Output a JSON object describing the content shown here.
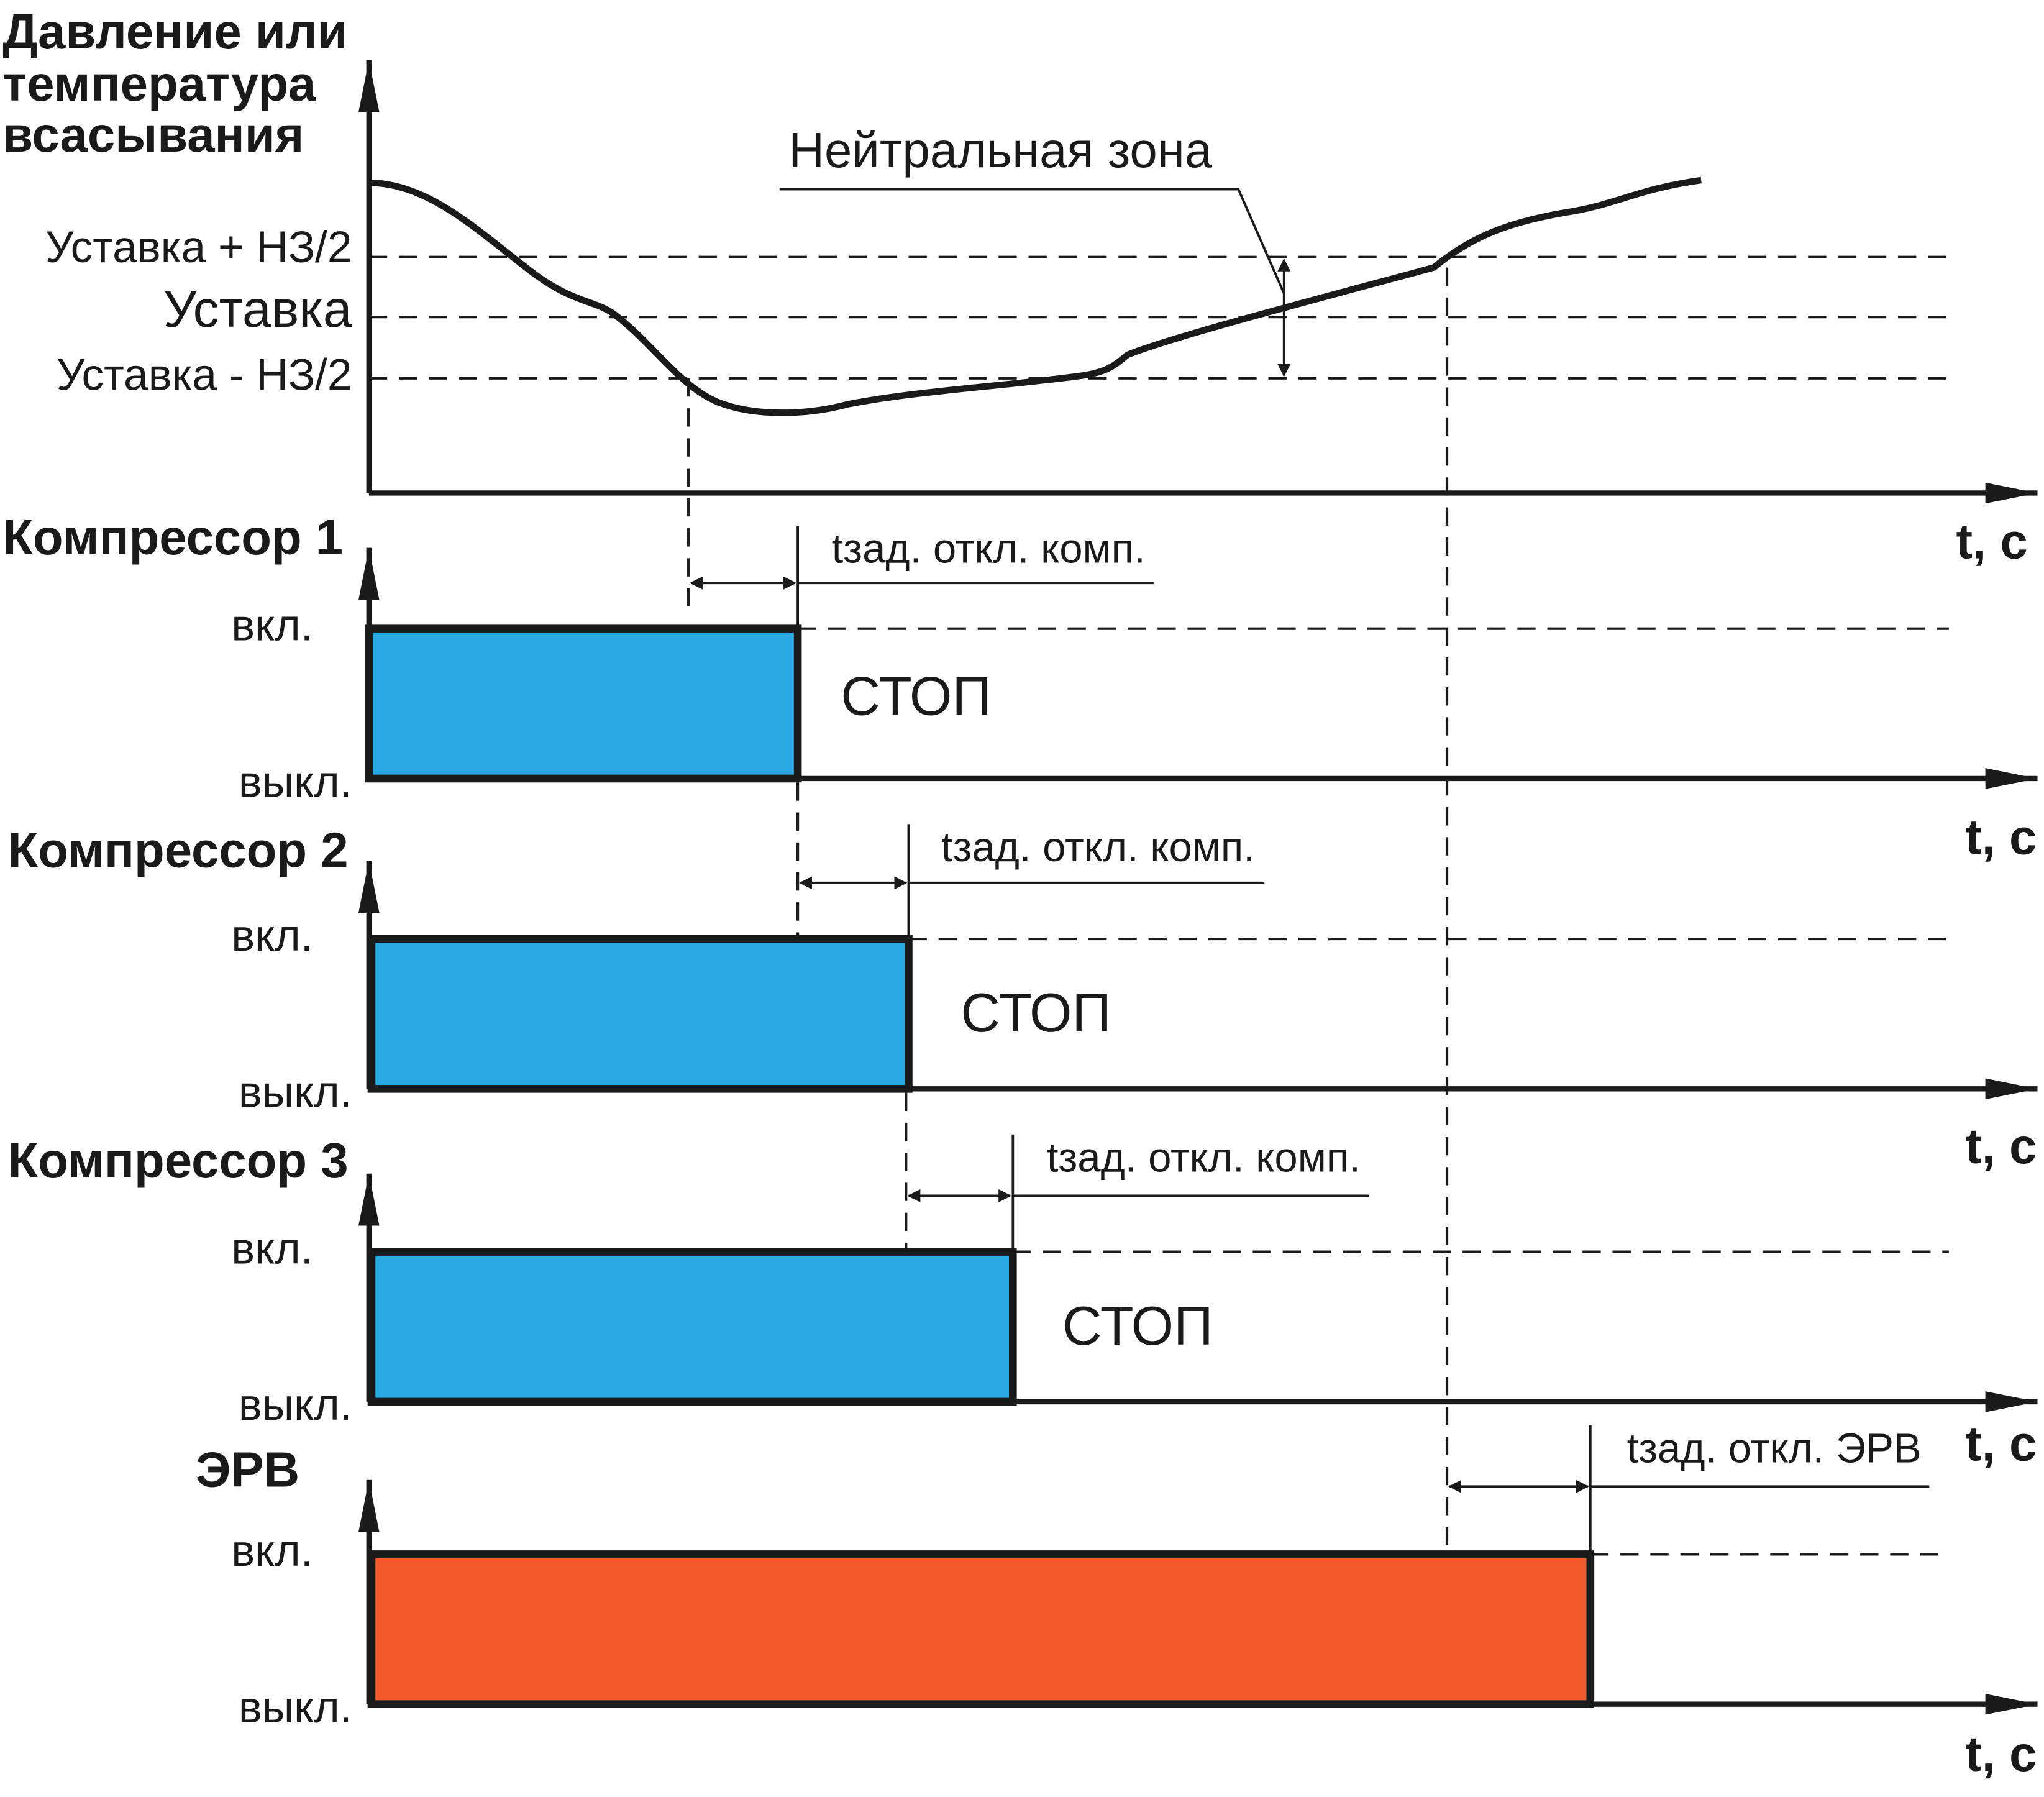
{
  "top_chart": {
    "y_label": [
      "Давление или",
      "температура",
      "всасывания"
    ],
    "levels": [
      "Уставка + НЗ/2",
      "Уставка",
      "Уставка - НЗ/2"
    ],
    "zone_label": "Нейтральная зона",
    "x_label": "t, с"
  },
  "channels": [
    {
      "title": "Компрессор 1",
      "on": "вкл.",
      "off": "выкл.",
      "delay": "tзад. откл. комп.",
      "state": "СТОП",
      "x_label": "t, с"
    },
    {
      "title": "Компрессор 2",
      "on": "вкл.",
      "off": "выкл.",
      "delay": "tзад. откл. комп.",
      "state": "СТОП",
      "x_label": "t, с"
    },
    {
      "title": "Компрессор 3",
      "on": "вкл.",
      "off": "выкл.",
      "delay": "tзад. откл. комп.",
      "state": "СТОП",
      "x_label": "t, с"
    },
    {
      "title": "ЭРВ",
      "on": "вкл.",
      "off": "выкл.",
      "delay": "tзад. откл. ЭРВ",
      "x_label": "t, с"
    }
  ]
}
